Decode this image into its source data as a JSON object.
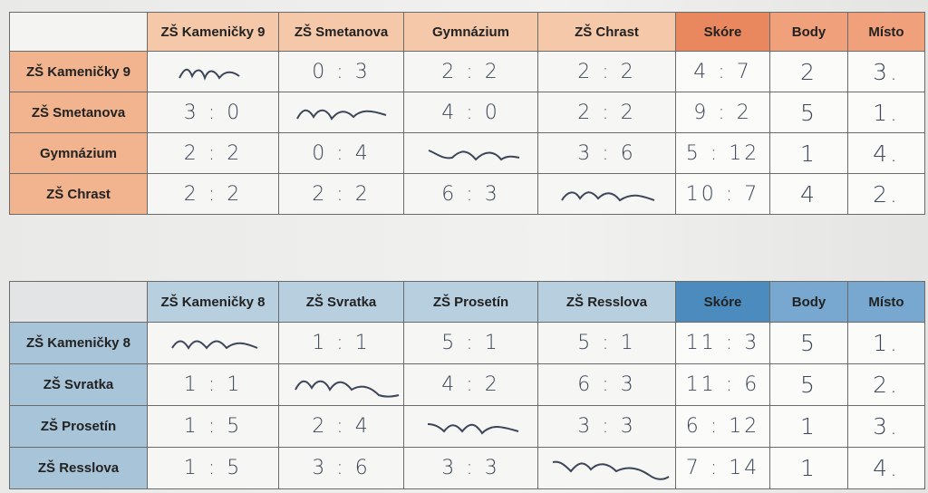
{
  "table_top": {
    "columns": [
      "ZŠ Kameničky 9",
      "ZŠ Smetanova",
      "Gymnázium",
      "ZŠ Chrast"
    ],
    "stats_headers": [
      "Skóre",
      "Body",
      "Místo"
    ],
    "rows": [
      {
        "team": "ZŠ Kameničky 9",
        "results": [
          "",
          "0 : 3",
          "2 : 2",
          "2 : 2"
        ],
        "score": "4 : 7",
        "points": "2",
        "place": "3."
      },
      {
        "team": "ZŠ Smetanova",
        "results": [
          "3 : 0",
          "",
          "4 : 0",
          "2 : 2"
        ],
        "score": "9 : 2",
        "points": "5",
        "place": "1."
      },
      {
        "team": "Gymnázium",
        "results": [
          "2 : 2",
          "0 : 4",
          "",
          "3 : 6"
        ],
        "score": "5 : 12",
        "points": "1",
        "place": "4."
      },
      {
        "team": "ZŠ Chrast",
        "results": [
          "2 : 2",
          "2 : 2",
          "6 : 3",
          ""
        ],
        "score": "10 : 7",
        "points": "4",
        "place": "2."
      }
    ]
  },
  "table_bottom": {
    "columns": [
      "ZŠ Kameničky 8",
      "ZŠ Svratka",
      "ZŠ Prosetín",
      "ZŠ Resslova"
    ],
    "stats_headers": [
      "Skóre",
      "Body",
      "Místo"
    ],
    "rows": [
      {
        "team": "ZŠ Kameničky 8",
        "results": [
          "",
          "1 : 1",
          "5 : 1",
          "5 : 1"
        ],
        "score": "11 : 3",
        "points": "5",
        "place": "1."
      },
      {
        "team": "ZŠ Svratka",
        "results": [
          "1 : 1",
          "",
          "4 : 2",
          "6 : 3"
        ],
        "score": "11 : 6",
        "points": "5",
        "place": "2."
      },
      {
        "team": "ZŠ Prosetín",
        "results": [
          "1 : 5",
          "2 : 4",
          "",
          "3 : 3"
        ],
        "score": "6 : 12",
        "points": "1",
        "place": "3."
      },
      {
        "team": "ZŠ Resslova",
        "results": [
          "1 : 5",
          "3 : 6",
          "3 : 3",
          ""
        ],
        "score": "7 : 14",
        "points": "1",
        "place": "4."
      }
    ]
  }
}
